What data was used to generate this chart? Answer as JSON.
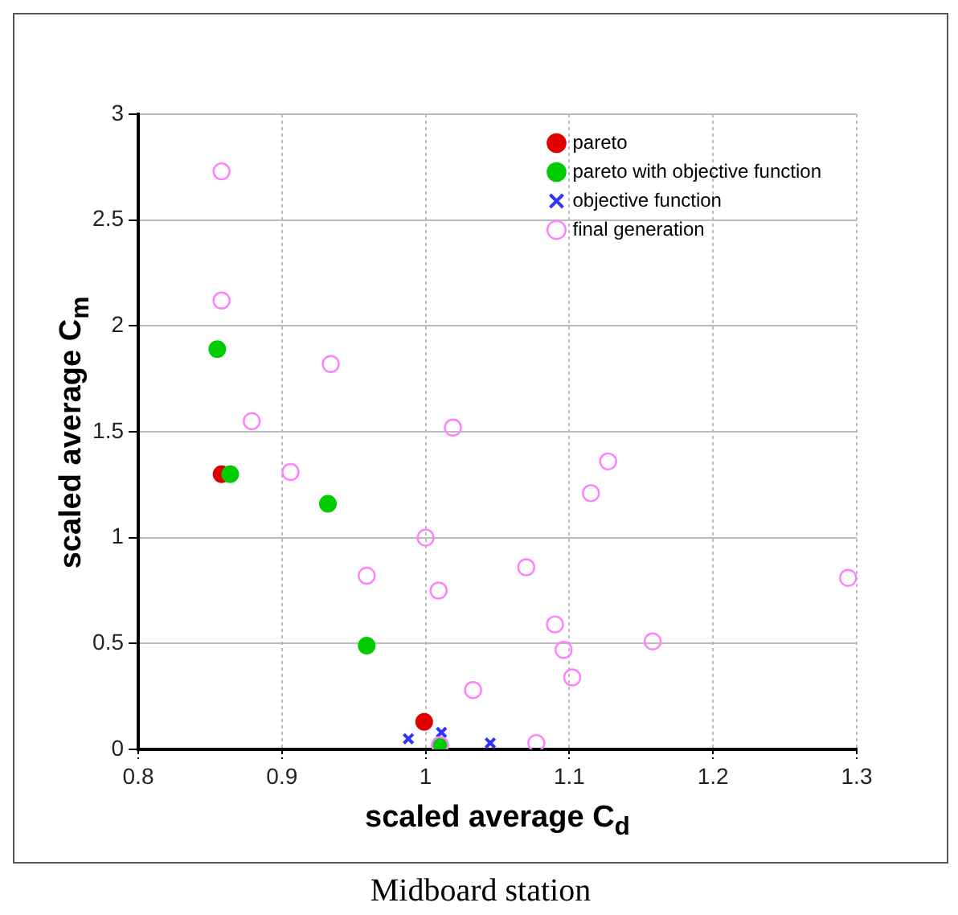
{
  "chart_data": {
    "type": "scatter",
    "title": "Midboard station",
    "xlabel": "scaled average C$_{d}$",
    "ylabel": "scaled average C$_{m}$",
    "xlim": [
      0.8,
      1.3
    ],
    "xticks": [
      0.8,
      0.9,
      1,
      1.1,
      1.2,
      1.3
    ],
    "ylim": [
      0,
      3
    ],
    "yticks": [
      0,
      0.5,
      1,
      1.5,
      2,
      2.5,
      3
    ],
    "grid": true,
    "legend": "top right",
    "series": [
      {
        "name": "pareto",
        "color": "#e00000",
        "marker": "circle",
        "x": [
          0.858,
          0.999
        ],
        "values": [
          1.3,
          0.13
        ]
      },
      {
        "name": "pareto with objective function",
        "color": "#00cc00",
        "marker": "circle",
        "x": [
          0.855,
          0.864,
          0.932,
          0.959,
          1.01
        ],
        "values": [
          1.89,
          1.3,
          1.16,
          0.49,
          0.02
        ]
      },
      {
        "name": "objective function",
        "color": "#3333ff",
        "marker": "cross",
        "x": [
          0.988,
          1.011,
          1.045
        ],
        "values": [
          0.05,
          0.08,
          0.03
        ]
      },
      {
        "name": "final generation",
        "color": "#ff80ff",
        "marker": "open circle",
        "x": [
          0.858,
          0.858,
          0.934,
          0.879,
          1.019,
          0.906,
          1.0,
          0.959,
          1.009,
          1.033,
          1.01,
          1.127,
          1.115,
          1.07,
          1.294,
          1.09,
          1.096,
          1.158,
          1.102,
          1.077
        ],
        "values": [
          2.73,
          2.12,
          1.82,
          1.55,
          1.52,
          1.31,
          1.0,
          0.82,
          0.75,
          0.28,
          0.02,
          1.36,
          1.21,
          0.86,
          0.81,
          0.59,
          0.47,
          0.51,
          0.34,
          0.03
        ]
      }
    ]
  }
}
